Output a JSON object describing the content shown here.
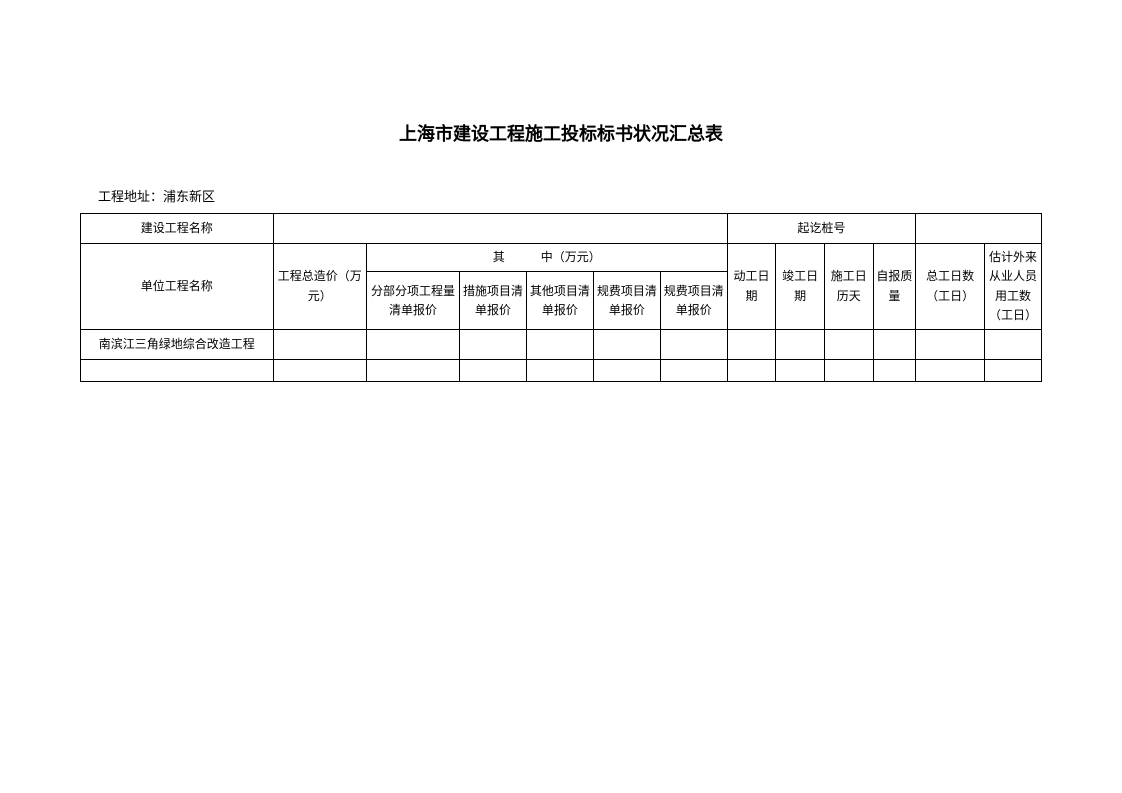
{
  "title": "上海市建设工程施工投标标书状况汇总表",
  "address_label": "工程地址：",
  "address_value": "浦东新区",
  "headers": {
    "project_name": "建设工程名称",
    "stake_no": "起讫桩号",
    "unit_project_name": "单位工程名称",
    "total_cost": "工程总造价（万元）",
    "breakdown_header": "其　　　中（万元）",
    "sub1": "分部分项工程量清单报价",
    "sub2": "措施项目清单报价",
    "sub3": "其他项目清单报价",
    "sub4": "规费项目清单报价",
    "sub5": "规费项目清单报价",
    "start_date": "动工日期",
    "end_date": "竣工日期",
    "cal_days": "施工日历天",
    "self_qual": "自报质量",
    "total_wd": "总工日数（工日）",
    "ext_workers": "估计外来从业人员用工数（工日）"
  },
  "rows": [
    {
      "name": "南滨江三角绿地综合改造工程",
      "total": "",
      "s1": "",
      "s2": "",
      "s3": "",
      "s4": "",
      "s5": "",
      "d1": "",
      "d2": "",
      "days": "",
      "qual": "",
      "wd": "",
      "ext": ""
    }
  ]
}
